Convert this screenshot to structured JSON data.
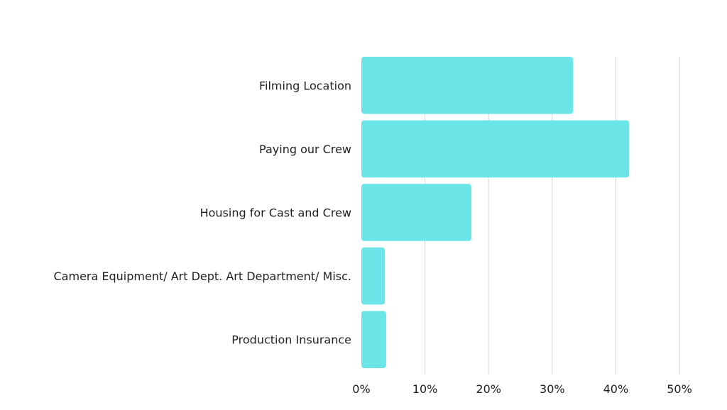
{
  "chart_data": {
    "type": "bar",
    "orientation": "horizontal",
    "categories": [
      "Filming Location",
      "Paying our Crew",
      "Housing for Cast and Crew",
      "Camera Equipment/ Art Dept. Art Department/ Misc.",
      "Production Insurance"
    ],
    "values": [
      33.3,
      42.1,
      17.3,
      3.7,
      3.9
    ],
    "x_ticks": [
      "0%",
      "10%",
      "20%",
      "30%",
      "40%",
      "50%"
    ],
    "x_tick_values": [
      0,
      10,
      20,
      30,
      40,
      50
    ],
    "xlim": [
      0,
      50
    ],
    "grid": true,
    "bar_color": "#6ce5e8",
    "gridline_color": "#d4d4d4",
    "text_color": "#1e1e1e"
  }
}
